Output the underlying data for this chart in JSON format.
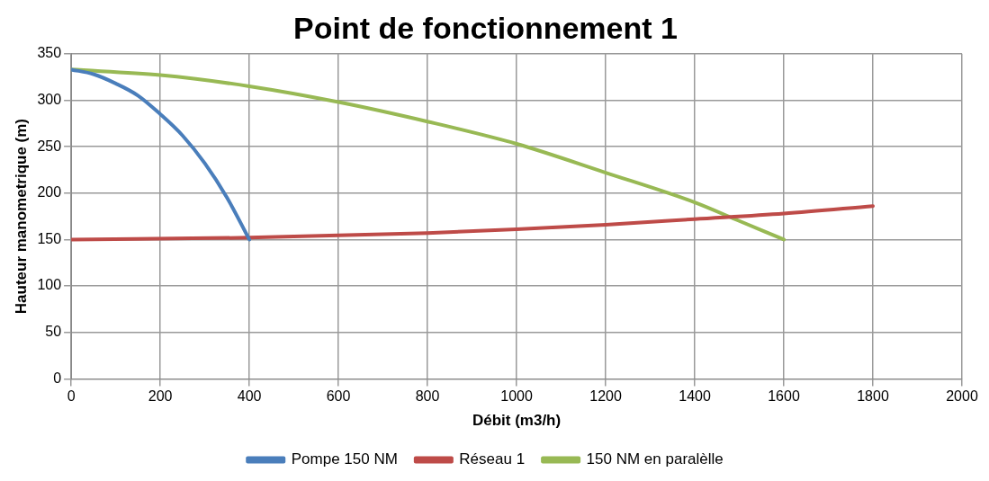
{
  "chart_data": {
    "type": "line",
    "title": "Point de fonctionnement 1",
    "xlabel": "Débit (m3/h)",
    "ylabel": "Hauteur manometrique (m)",
    "xlim": [
      0,
      2000
    ],
    "xticks": [
      0,
      200,
      400,
      600,
      800,
      1000,
      1200,
      1400,
      1600,
      1800,
      2000
    ],
    "ylim": [
      0,
      350
    ],
    "yticks": [
      0,
      50,
      100,
      150,
      200,
      250,
      300,
      350
    ],
    "grid": true,
    "legend": "bottom",
    "marker": "none",
    "line_style": "solid",
    "series": [
      {
        "name": "Pompe 150 NM",
        "color": "#4a7ebb",
        "x": [
          0,
          50,
          100,
          150,
          200,
          250,
          300,
          350,
          400
        ],
        "values": [
          333,
          328,
          318,
          305,
          285,
          262,
          232,
          195,
          150
        ]
      },
      {
        "name": "Réseau 1",
        "color": "#be4b48",
        "x": [
          0,
          400,
          800,
          1000,
          1200,
          1400,
          1600,
          1800
        ],
        "values": [
          150,
          152,
          157,
          161,
          166,
          172,
          178,
          186
        ]
      },
      {
        "name": "150 NM en paralèlle",
        "color": "#98b954",
        "x": [
          0,
          200,
          400,
          600,
          800,
          1000,
          1200,
          1400,
          1500,
          1600
        ],
        "values": [
          333,
          327,
          315,
          298,
          277,
          253,
          222,
          190,
          170,
          150
        ]
      }
    ]
  }
}
